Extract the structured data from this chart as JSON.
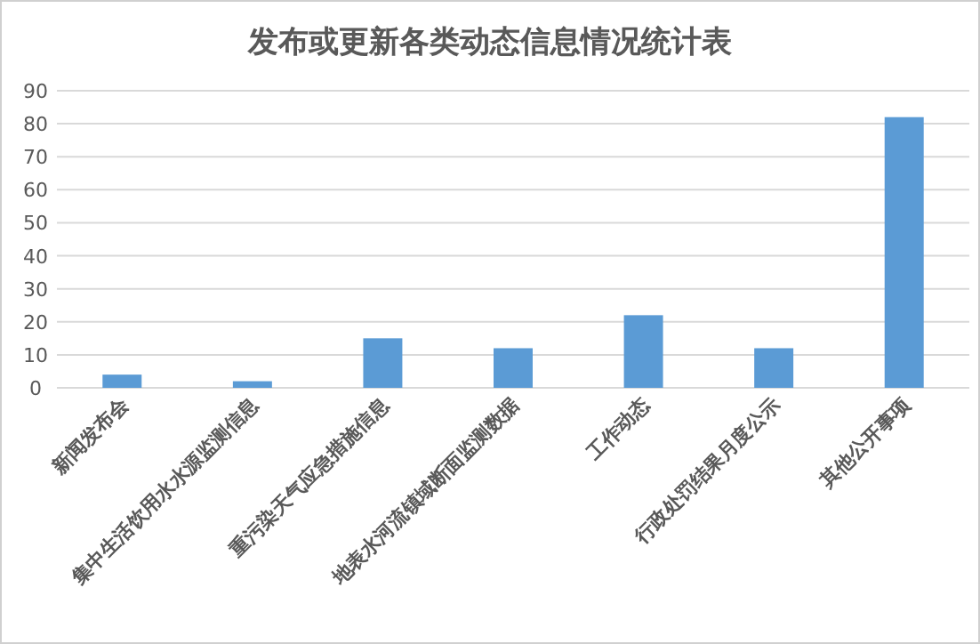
{
  "chart_data": {
    "type": "bar",
    "title": "发布或更新各类动态信息情况统计表",
    "categories": [
      "新闻发布会",
      "集中生活饮用水水源监测信息",
      "重污染天气应急措施信息",
      "地表水河流镇域断面监测数据",
      "工作动态",
      "行政处罚结果月度公示",
      "其他公开事项"
    ],
    "values": [
      4,
      2,
      15,
      12,
      22,
      12,
      82
    ],
    "color": "#5b9bd5",
    "ylim": [
      0,
      90
    ],
    "yticks": [
      0,
      10,
      20,
      30,
      40,
      50,
      60,
      70,
      80,
      90
    ],
    "grid": "y"
  }
}
